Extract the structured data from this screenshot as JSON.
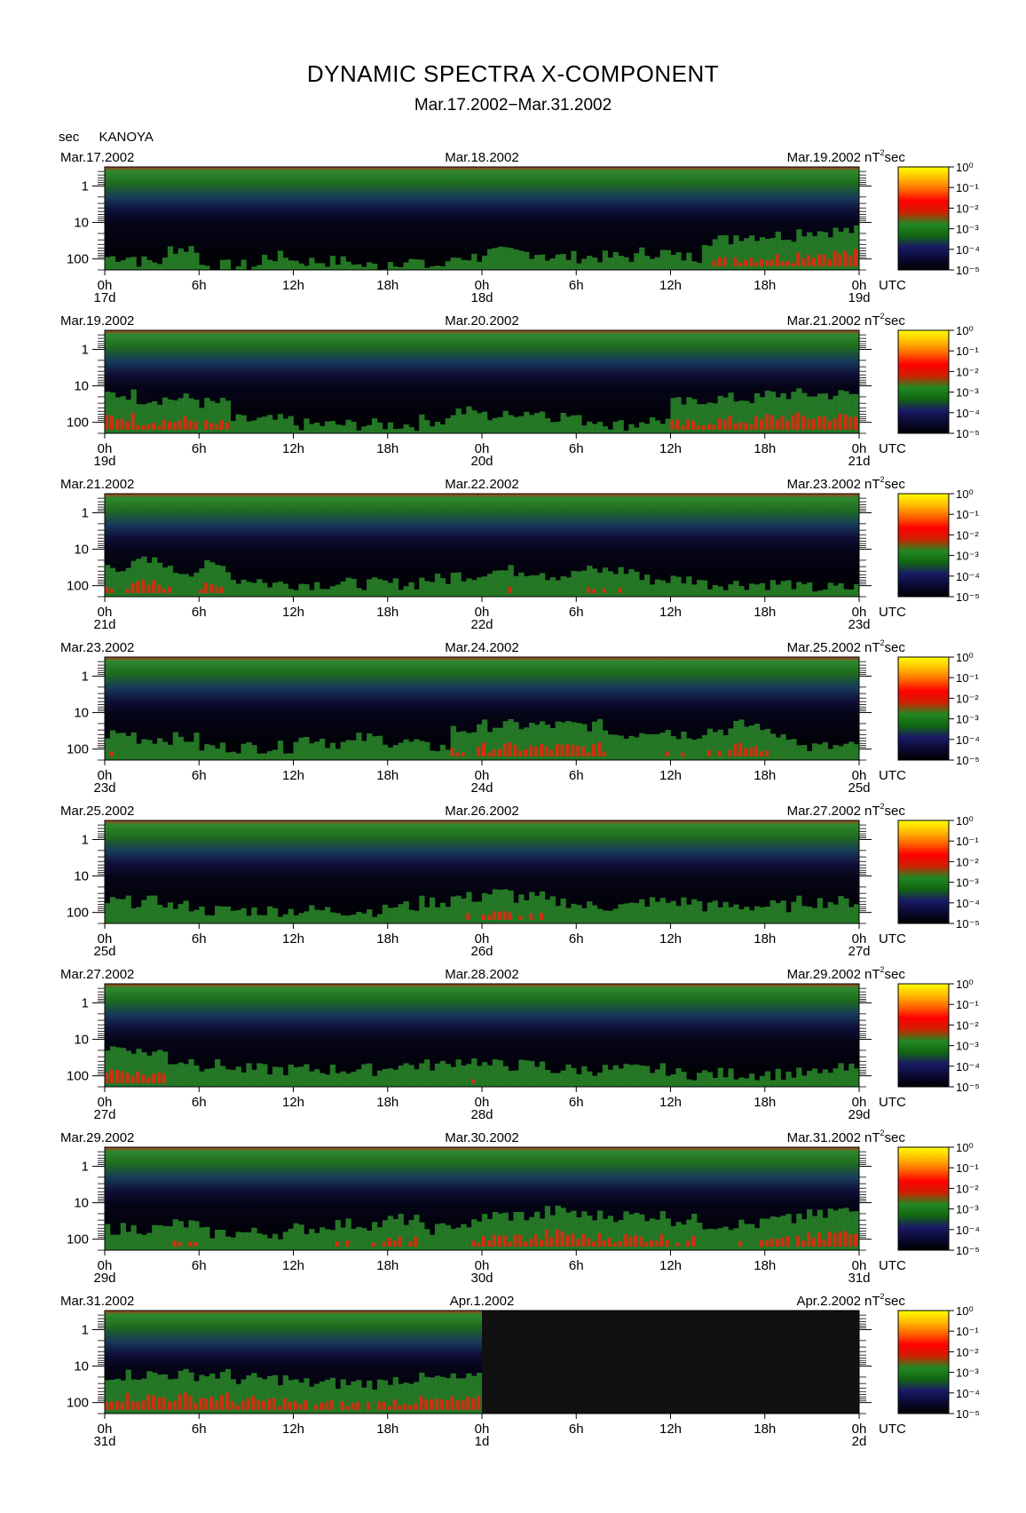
{
  "chart_data": {
    "type": "heatmap",
    "title": "DYNAMIC SPECTRA X-COMPONENT",
    "subtitle": "Mar.17.2002−Mar.31.2002",
    "station": "KANOYA",
    "y_unit": "sec",
    "y_ticks": [
      "1",
      "10",
      "100"
    ],
    "y_scale": "log",
    "x_ticks": [
      "0h",
      "6h",
      "12h",
      "18h",
      "0h",
      "6h",
      "12h",
      "18h",
      "0h"
    ],
    "x_unit": "UTC",
    "colorbar": {
      "unit": "nT²sec",
      "scale": "log",
      "range": [
        1e-05,
        1
      ],
      "labels": [
        "10⁰",
        "10⁻¹",
        "10⁻²",
        "10⁻³",
        "10⁻⁴",
        "10⁻⁵"
      ],
      "colors": [
        "#ffff00",
        "#ffbb00",
        "#ff6600",
        "#ff0000",
        "#cc2200",
        "#228822",
        "#116611",
        "#1a1a66",
        "#0a0a33",
        "#000000"
      ]
    },
    "panels": [
      {
        "left_date": "Mar.17.2002",
        "mid_date": "Mar.18.2002",
        "right_date": "Mar.19.2002",
        "day_labels": [
          "17d",
          "18d",
          "19d"
        ],
        "activity": [
          0.3,
          0.2,
          0.5,
          0.1,
          0.1,
          0.3,
          0.2,
          0.2,
          0.1,
          0.2,
          0.1,
          0.3,
          0.4,
          0.4,
          0.3,
          0.3,
          0.3,
          0.4,
          0.3,
          0.7,
          0.8,
          0.8,
          0.9,
          0.9
        ],
        "missing_from": null
      },
      {
        "left_date": "Mar.19.2002",
        "mid_date": "Mar.20.2002",
        "right_date": "Mar.21.2002",
        "day_labels": [
          "19d",
          "20d",
          "21d"
        ],
        "activity": [
          0.9,
          0.8,
          0.8,
          0.7,
          0.3,
          0.3,
          0.2,
          0.2,
          0.2,
          0.2,
          0.3,
          0.5,
          0.4,
          0.5,
          0.4,
          0.3,
          0.2,
          0.3,
          0.7,
          0.8,
          0.8,
          0.9,
          0.9,
          0.9
        ],
        "missing_from": null
      },
      {
        "left_date": "Mar.21.2002",
        "mid_date": "Mar.22.2002",
        "right_date": "Mar.23.2002",
        "day_labels": [
          "21d",
          "22d",
          "23d"
        ],
        "activity": [
          0.7,
          0.8,
          0.6,
          0.7,
          0.4,
          0.3,
          0.3,
          0.3,
          0.3,
          0.3,
          0.4,
          0.5,
          0.6,
          0.6,
          0.5,
          0.6,
          0.6,
          0.4,
          0.4,
          0.3,
          0.3,
          0.3,
          0.2,
          0.2
        ],
        "missing_from": null
      },
      {
        "left_date": "Mar.23.2002",
        "mid_date": "Mar.24.2002",
        "right_date": "Mar.25.2002",
        "day_labels": [
          "23d",
          "24d",
          "25d"
        ],
        "activity": [
          0.6,
          0.5,
          0.5,
          0.3,
          0.3,
          0.3,
          0.5,
          0.4,
          0.5,
          0.4,
          0.3,
          0.7,
          0.8,
          0.8,
          0.8,
          0.8,
          0.6,
          0.7,
          0.6,
          0.7,
          0.8,
          0.6,
          0.3,
          0.3
        ],
        "missing_from": null
      },
      {
        "left_date": "Mar.25.2002",
        "mid_date": "Mar.26.2002",
        "right_date": "Mar.27.2002",
        "day_labels": [
          "25d",
          "26d",
          "27d"
        ],
        "activity": [
          0.5,
          0.5,
          0.4,
          0.3,
          0.3,
          0.3,
          0.3,
          0.3,
          0.3,
          0.4,
          0.5,
          0.6,
          0.7,
          0.6,
          0.5,
          0.4,
          0.4,
          0.5,
          0.5,
          0.4,
          0.4,
          0.4,
          0.5,
          0.5
        ],
        "missing_from": null
      },
      {
        "left_date": "Mar.27.2002",
        "mid_date": "Mar.28.2002",
        "right_date": "Mar.29.2002",
        "day_labels": [
          "27d",
          "28d",
          "29d"
        ],
        "activity": [
          0.9,
          0.8,
          0.6,
          0.5,
          0.4,
          0.4,
          0.4,
          0.4,
          0.4,
          0.5,
          0.5,
          0.6,
          0.5,
          0.5,
          0.4,
          0.4,
          0.4,
          0.4,
          0.3,
          0.3,
          0.3,
          0.3,
          0.3,
          0.4
        ],
        "missing_from": null
      },
      {
        "left_date": "Mar.29.2002",
        "mid_date": "Mar.30.2002",
        "right_date": "Mar.31.2002",
        "day_labels": [
          "29d",
          "30d",
          "31d"
        ],
        "activity": [
          0.5,
          0.5,
          0.6,
          0.4,
          0.4,
          0.4,
          0.5,
          0.6,
          0.6,
          0.7,
          0.5,
          0.6,
          0.8,
          0.8,
          0.9,
          0.8,
          0.8,
          0.8,
          0.7,
          0.6,
          0.6,
          0.7,
          0.8,
          0.9
        ],
        "missing_from": null
      },
      {
        "left_date": "Mar.31.2002",
        "mid_date": "Apr.1.2002",
        "right_date": "Apr.2.2002",
        "day_labels": [
          "31d",
          "1d",
          "2d"
        ],
        "activity": [
          0.9,
          0.9,
          0.9,
          0.9,
          0.8,
          0.8,
          0.7,
          0.7,
          0.7,
          0.8,
          0.8,
          0.8,
          0,
          0,
          0,
          0,
          0,
          0,
          0,
          0,
          0,
          0,
          0,
          0
        ],
        "missing_from": 0.5
      }
    ]
  }
}
